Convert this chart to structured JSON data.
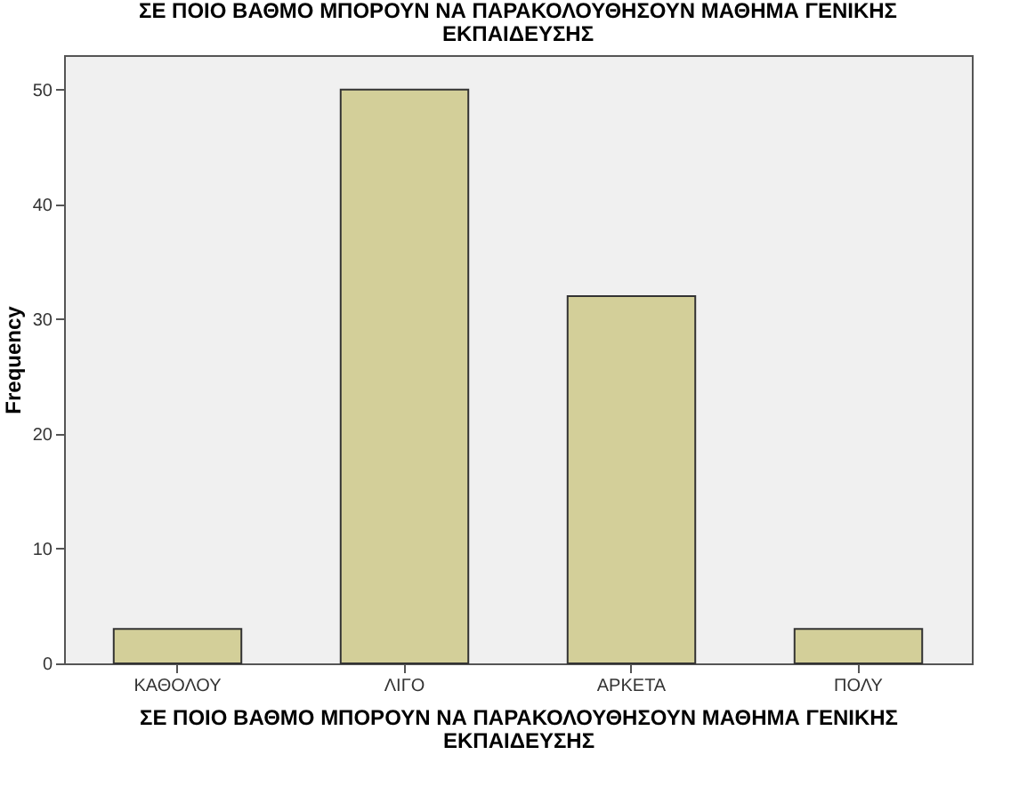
{
  "chart_data": {
    "type": "bar",
    "title": "ΣΕ ΠΟΙΟ ΒΑΘΜΟ ΜΠΟΡΟΥΝ ΝΑ ΠΑΡΑΚΟΛΟΥΘΗΣΟΥΝ ΜΑΘΗΜΑ ΓΕΝΙΚΗΣ\nΕΚΠΑΙΔΕΥΣΗΣ",
    "xlabel": "ΣΕ ΠΟΙΟ ΒΑΘΜΟ ΜΠΟΡΟΥΝ ΝΑ ΠΑΡΑΚΟΛΟΥΘΗΣΟΥΝ ΜΑΘΗΜΑ ΓΕΝΙΚΗΣ\nΕΚΠΑΙΔΕΥΣΗΣ",
    "ylabel": "Frequency",
    "categories": [
      "ΚΑΘΟΛΟΥ",
      "ΛΙΓΟ",
      "ΑΡΚΕΤΑ",
      "ΠΟΛΥ"
    ],
    "values": [
      3,
      50,
      32,
      3
    ],
    "color": "#d3cf99",
    "ylim": [
      0,
      53
    ],
    "yticks": [
      0,
      10,
      20,
      30,
      40,
      50
    ]
  }
}
